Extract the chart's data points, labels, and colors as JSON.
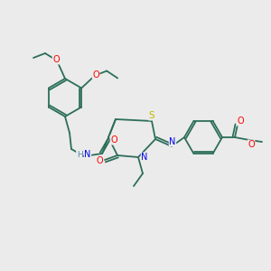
{
  "bg_color": "#ebebeb",
  "bond_color": "#2d6e5a",
  "atom_colors": {
    "O": "#ff0000",
    "N": "#0000ee",
    "S": "#bbbb00",
    "H": "#5588aa",
    "C": "#2d6e5a"
  }
}
